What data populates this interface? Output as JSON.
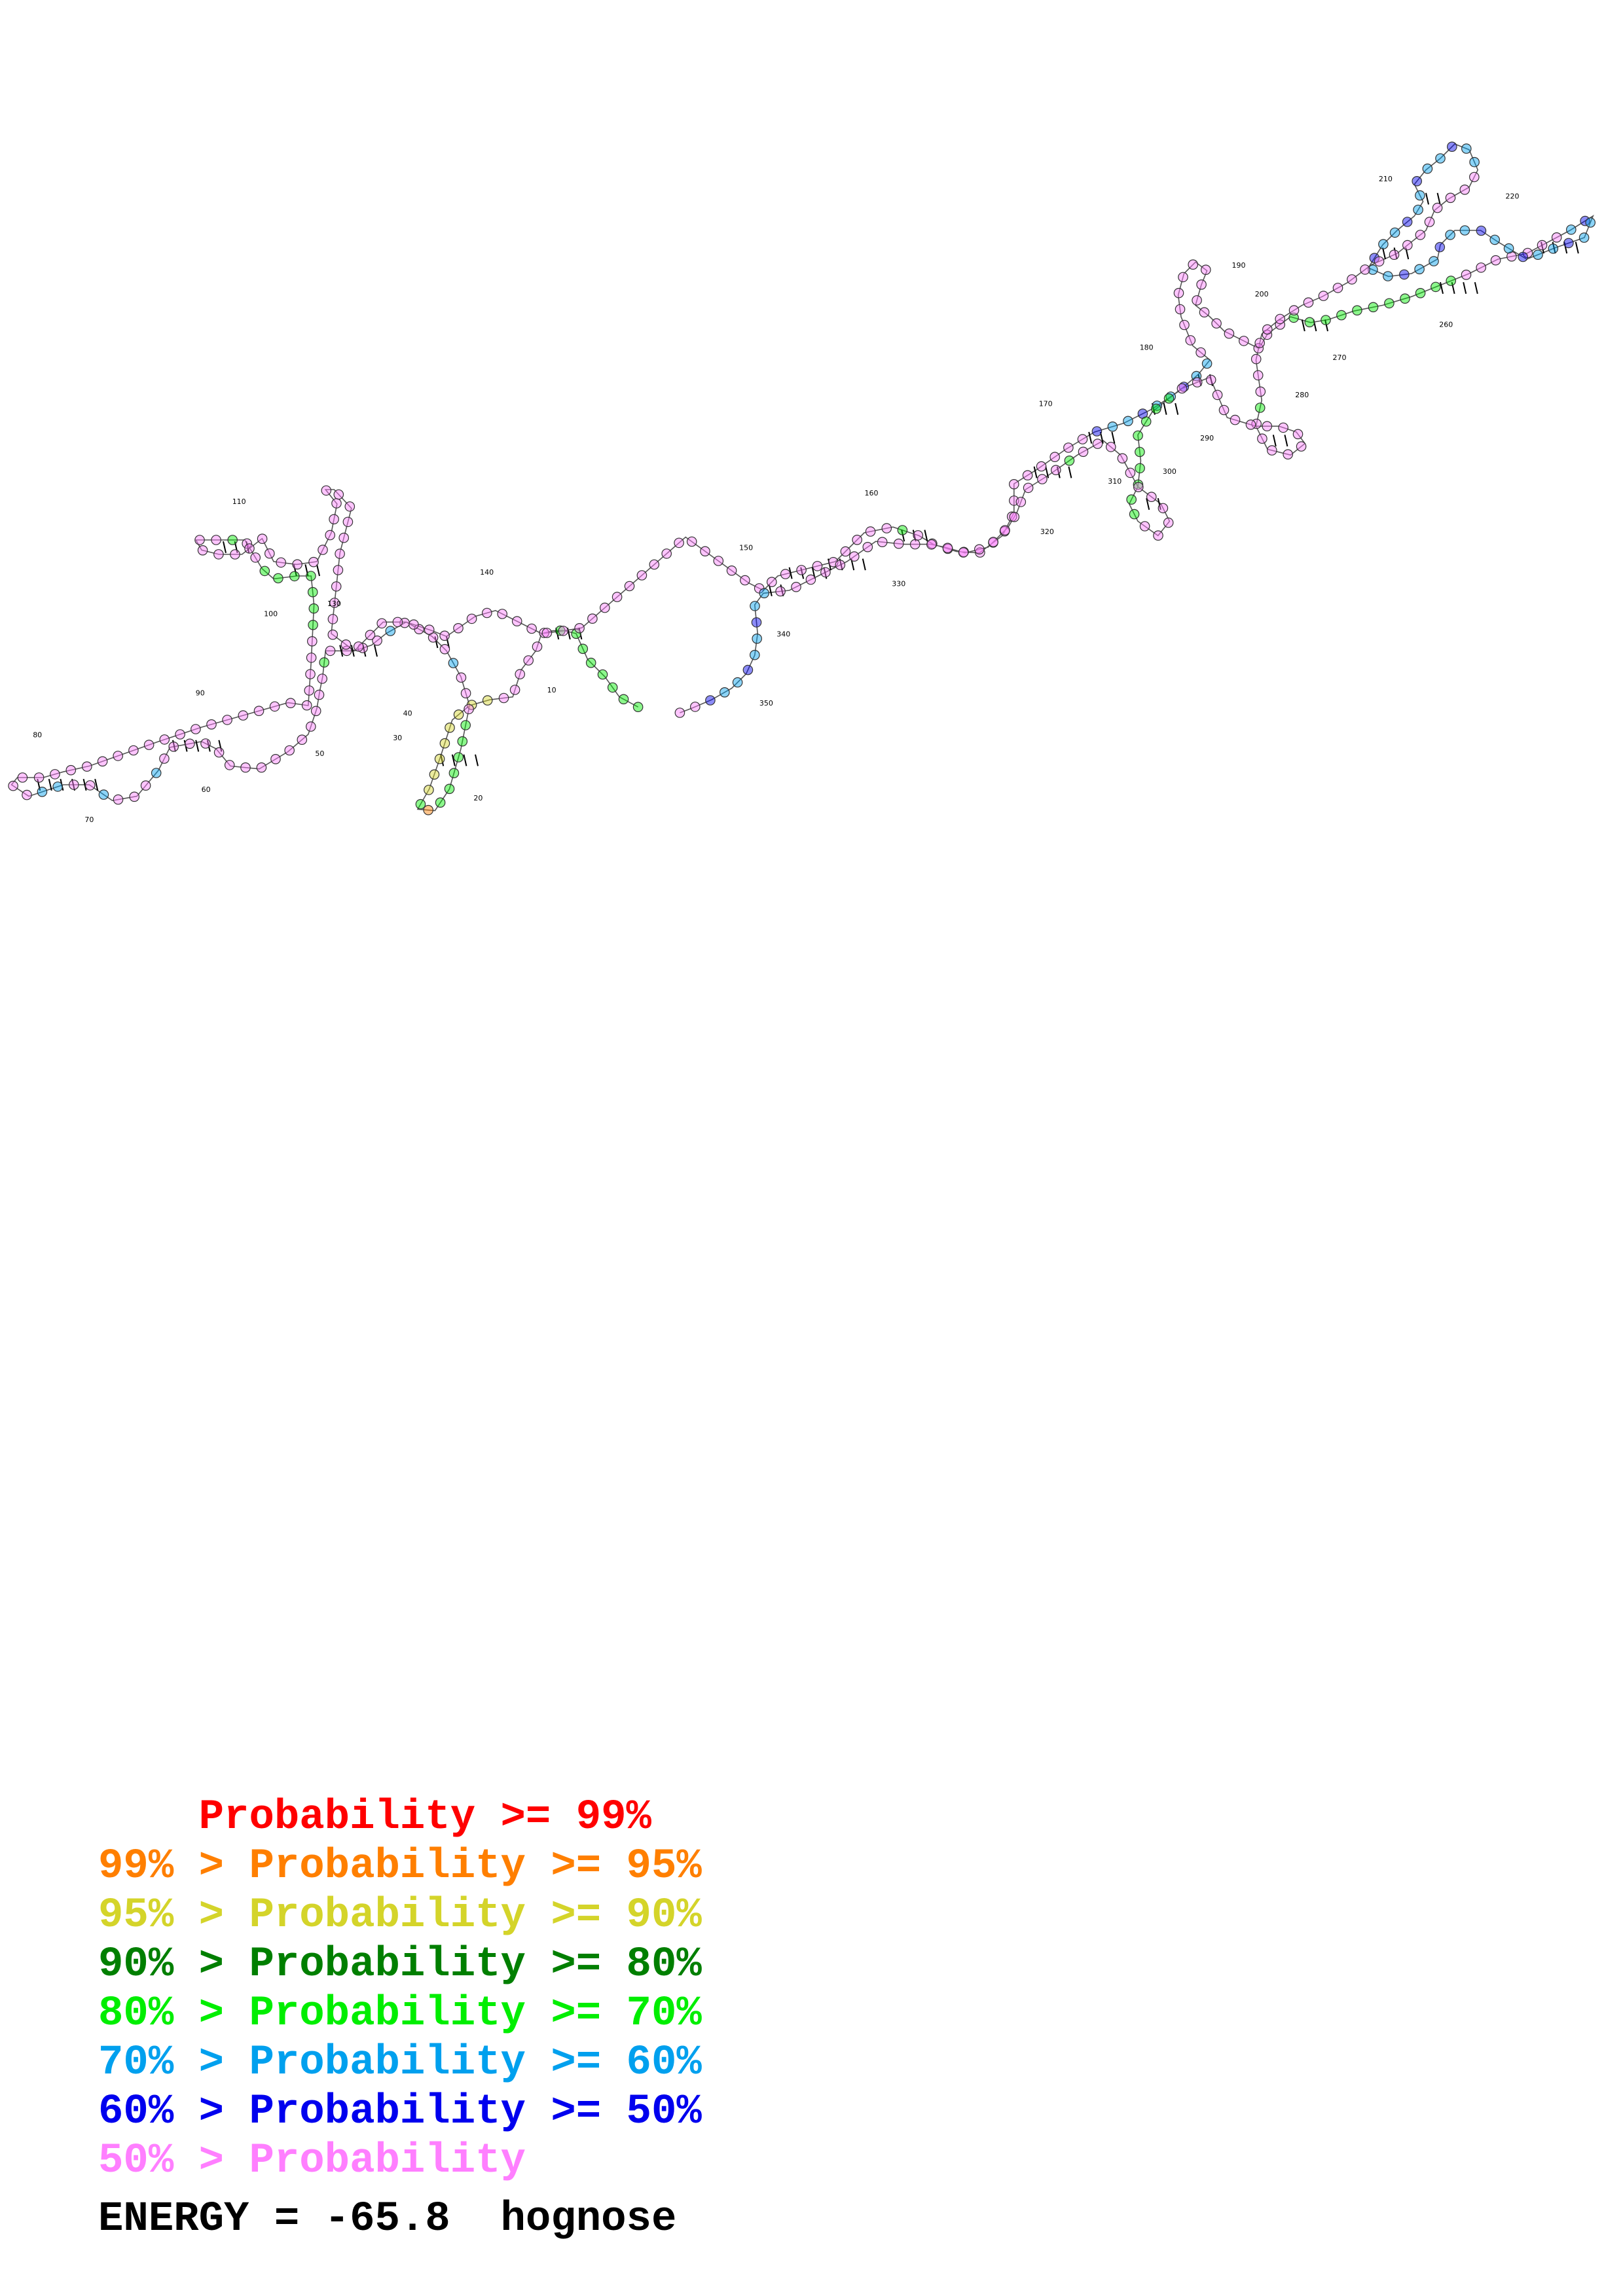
{
  "legend": [
    {
      "prefix": "    ",
      "text": "    Probability >= 99%",
      "color": "#ff0000"
    },
    {
      "prefix": "",
      "text": "99% > Probability >= 95%",
      "color": "#ff7f00"
    },
    {
      "prefix": "",
      "text": "95% > Probability >= 90%",
      "color": "#d4d42a"
    },
    {
      "prefix": "",
      "text": "90% > Probability >= 80%",
      "color": "#007f00"
    },
    {
      "prefix": "",
      "text": "80% > Probability >= 70%",
      "color": "#00ee00"
    },
    {
      "prefix": "",
      "text": "70% > Probability >= 60%",
      "color": "#00a0ee"
    },
    {
      "prefix": "",
      "text": "60% > Probability >= 50%",
      "color": "#0000ee"
    },
    {
      "prefix": "",
      "text": "50% > Probability",
      "color": "#ff7fff"
    }
  ],
  "energy_text": "ENERGY = -65.8  hognose",
  "position_labels": [
    "10",
    "20",
    "30",
    "40",
    "50",
    "60",
    "70",
    "80",
    "90",
    "100",
    "110",
    "130",
    "140",
    "150",
    "160",
    "170",
    "180",
    "190",
    "200",
    "210",
    "220",
    "260",
    "270",
    "280",
    "290",
    "300",
    "310",
    "320",
    "330",
    "340",
    "350"
  ],
  "structure": {
    "sequence_length": 350,
    "fill_colors": {
      "p99": "#ff0000",
      "p95": "#ff7f00",
      "p90": "#d4d42a",
      "p80": "#007f00",
      "p70": "#00ee00",
      "p60": "#00a0ee",
      "p50": "#0000ee",
      "low": "#ff7fff"
    }
  }
}
